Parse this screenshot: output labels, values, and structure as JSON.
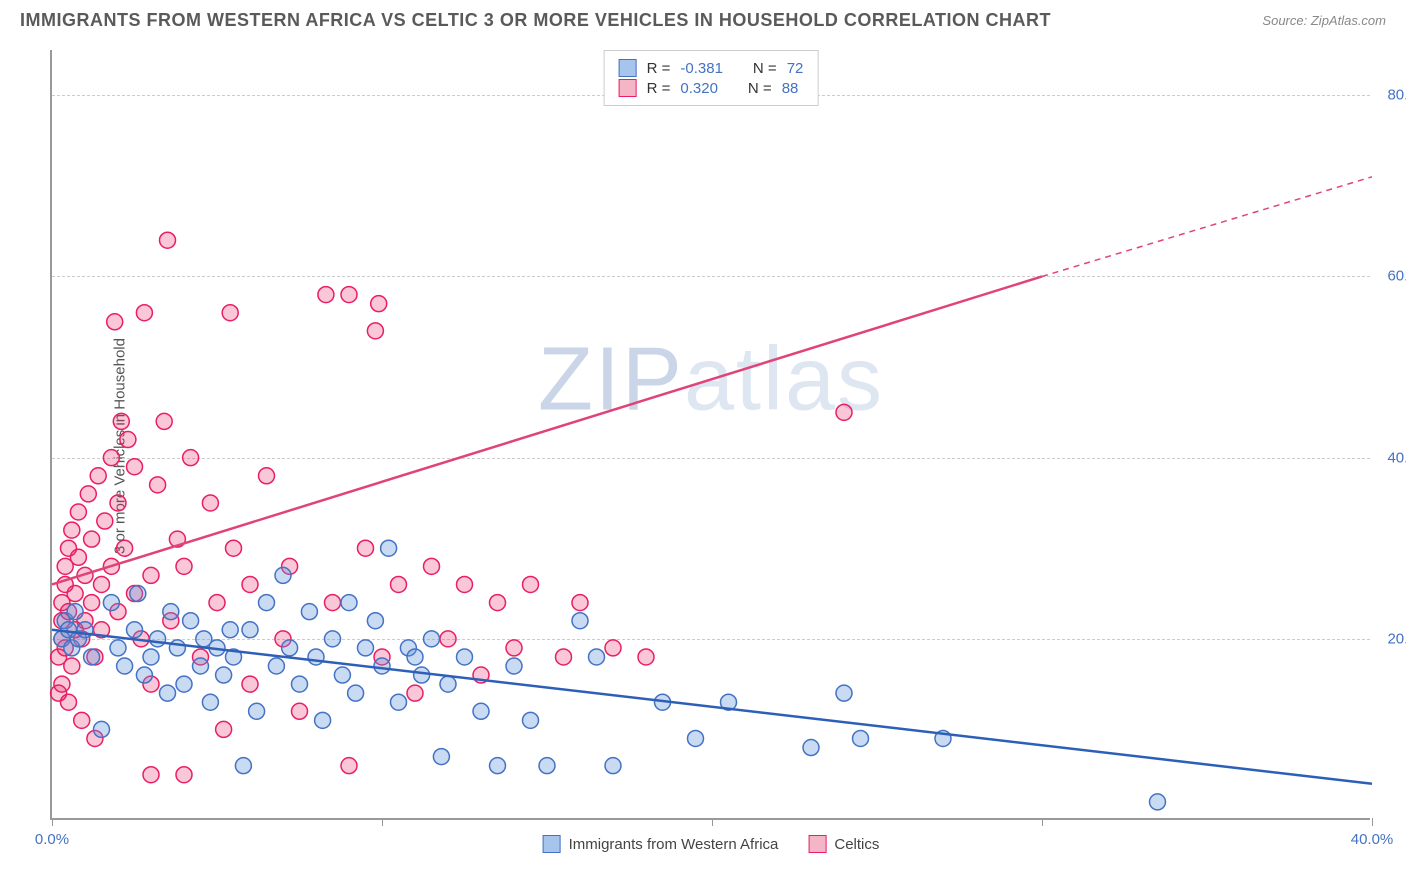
{
  "title": "IMMIGRANTS FROM WESTERN AFRICA VS CELTIC 3 OR MORE VEHICLES IN HOUSEHOLD CORRELATION CHART",
  "source_label": "Source:",
  "source_value": "ZipAtlas.com",
  "y_axis_label": "3 or more Vehicles in Household",
  "watermark_a": "ZIP",
  "watermark_b": "atlas",
  "chart": {
    "type": "scatter",
    "xlim": [
      0,
      40
    ],
    "ylim": [
      0,
      85
    ],
    "y_ticks": [
      20,
      40,
      60,
      80
    ],
    "y_tick_labels": [
      "20.0%",
      "40.0%",
      "60.0%",
      "80.0%"
    ],
    "x_ticks": [
      0,
      10,
      20,
      30,
      40
    ],
    "x_tick_labels": [
      "0.0%",
      "",
      "",
      "",
      "40.0%"
    ],
    "grid_color": "#cccccc",
    "background": "#ffffff"
  },
  "legend_top": [
    {
      "swatch_fill": "#a6c4ec",
      "swatch_border": "#4472c4",
      "r_label": "R =",
      "r_value": "-0.381",
      "n_label": "N =",
      "n_value": "72"
    },
    {
      "swatch_fill": "#f4b6c6",
      "swatch_border": "#e91e63",
      "r_label": "R =",
      "r_value": "0.320",
      "n_label": "N =",
      "n_value": "88"
    }
  ],
  "legend_bottom": [
    {
      "swatch_fill": "#a6c4ec",
      "swatch_border": "#4472c4",
      "label": "Immigrants from Western Africa"
    },
    {
      "swatch_fill": "#f4b6c6",
      "swatch_border": "#e91e63",
      "label": "Celtics"
    }
  ],
  "series_blue": {
    "color_fill": "rgba(100,150,220,0.35)",
    "color_stroke": "#4472c4",
    "marker_radius": 8,
    "trend": {
      "x1": 0,
      "y1": 21,
      "x2": 40,
      "y2": 4,
      "color": "#2d5fb8",
      "width": 2.5
    },
    "points": [
      [
        0.3,
        20
      ],
      [
        0.4,
        22
      ],
      [
        0.5,
        21
      ],
      [
        0.6,
        19
      ],
      [
        0.8,
        20
      ],
      [
        1.0,
        21
      ],
      [
        1.2,
        18
      ],
      [
        1.5,
        10
      ],
      [
        2.0,
        19
      ],
      [
        2.2,
        17
      ],
      [
        2.5,
        21
      ],
      [
        2.8,
        16
      ],
      [
        3.0,
        18
      ],
      [
        3.2,
        20
      ],
      [
        3.5,
        14
      ],
      [
        3.8,
        19
      ],
      [
        4.0,
        15
      ],
      [
        4.2,
        22
      ],
      [
        4.5,
        17
      ],
      [
        4.8,
        13
      ],
      [
        5.0,
        19
      ],
      [
        5.2,
        16
      ],
      [
        5.5,
        18
      ],
      [
        5.8,
        6
      ],
      [
        6.0,
        21
      ],
      [
        6.2,
        12
      ],
      [
        6.5,
        24
      ],
      [
        6.8,
        17
      ],
      [
        7.0,
        27
      ],
      [
        7.2,
        19
      ],
      [
        7.5,
        15
      ],
      [
        7.8,
        23
      ],
      [
        8.0,
        18
      ],
      [
        8.2,
        11
      ],
      [
        8.5,
        20
      ],
      [
        8.8,
        16
      ],
      [
        9.0,
        24
      ],
      [
        9.2,
        14
      ],
      [
        9.5,
        19
      ],
      [
        9.8,
        22
      ],
      [
        10.0,
        17
      ],
      [
        10.2,
        30
      ],
      [
        10.5,
        13
      ],
      [
        10.8,
        19
      ],
      [
        11.0,
        18
      ],
      [
        11.2,
        16
      ],
      [
        11.5,
        20
      ],
      [
        11.8,
        7
      ],
      [
        12.0,
        15
      ],
      [
        12.5,
        18
      ],
      [
        13.0,
        12
      ],
      [
        13.5,
        6
      ],
      [
        14.0,
        17
      ],
      [
        14.5,
        11
      ],
      [
        15.0,
        6
      ],
      [
        16.0,
        22
      ],
      [
        16.5,
        18
      ],
      [
        17.0,
        6
      ],
      [
        18.5,
        13
      ],
      [
        19.5,
        9
      ],
      [
        20.5,
        13
      ],
      [
        23.0,
        8
      ],
      [
        24.0,
        14
      ],
      [
        24.5,
        9
      ],
      [
        27.0,
        9
      ],
      [
        33.5,
        2
      ],
      [
        0.7,
        23
      ],
      [
        1.8,
        24
      ],
      [
        2.6,
        25
      ],
      [
        3.6,
        23
      ],
      [
        4.6,
        20
      ],
      [
        5.4,
        21
      ]
    ]
  },
  "series_pink": {
    "color_fill": "rgba(233,30,99,0.25)",
    "color_stroke": "#e91e63",
    "marker_radius": 8,
    "trend_solid": {
      "x1": 0,
      "y1": 26,
      "x2": 30,
      "y2": 60,
      "color": "#e04377",
      "width": 2.5
    },
    "trend_dash": {
      "x1": 30,
      "y1": 60,
      "x2": 40,
      "y2": 71,
      "color": "#e04377",
      "width": 1.5,
      "dash": "6,5"
    },
    "points": [
      [
        0.2,
        18
      ],
      [
        0.3,
        20
      ],
      [
        0.3,
        22
      ],
      [
        0.3,
        24
      ],
      [
        0.4,
        26
      ],
      [
        0.4,
        28
      ],
      [
        0.4,
        19
      ],
      [
        0.5,
        30
      ],
      [
        0.5,
        23
      ],
      [
        0.6,
        17
      ],
      [
        0.6,
        32
      ],
      [
        0.7,
        25
      ],
      [
        0.7,
        21
      ],
      [
        0.8,
        29
      ],
      [
        0.8,
        34
      ],
      [
        0.9,
        20
      ],
      [
        1.0,
        27
      ],
      [
        1.0,
        22
      ],
      [
        1.1,
        36
      ],
      [
        1.2,
        24
      ],
      [
        1.2,
        31
      ],
      [
        1.3,
        18
      ],
      [
        1.4,
        38
      ],
      [
        1.5,
        26
      ],
      [
        1.5,
        21
      ],
      [
        1.6,
        33
      ],
      [
        1.8,
        28
      ],
      [
        1.8,
        40
      ],
      [
        2.0,
        23
      ],
      [
        2.0,
        35
      ],
      [
        2.2,
        30
      ],
      [
        2.3,
        42
      ],
      [
        2.5,
        25
      ],
      [
        2.5,
        39
      ],
      [
        2.7,
        20
      ],
      [
        2.8,
        56
      ],
      [
        3.0,
        27
      ],
      [
        3.0,
        15
      ],
      [
        3.2,
        37
      ],
      [
        3.4,
        44
      ],
      [
        3.5,
        64
      ],
      [
        3.6,
        22
      ],
      [
        3.8,
        31
      ],
      [
        4.0,
        5
      ],
      [
        4.0,
        28
      ],
      [
        4.2,
        40
      ],
      [
        4.5,
        18
      ],
      [
        4.8,
        35
      ],
      [
        5.0,
        24
      ],
      [
        5.2,
        10
      ],
      [
        5.5,
        30
      ],
      [
        5.4,
        56
      ],
      [
        6.0,
        26
      ],
      [
        6.0,
        15
      ],
      [
        6.5,
        38
      ],
      [
        7.0,
        20
      ],
      [
        7.2,
        28
      ],
      [
        7.5,
        12
      ],
      [
        8.3,
        58
      ],
      [
        8.5,
        24
      ],
      [
        9.0,
        6
      ],
      [
        9.0,
        58
      ],
      [
        9.5,
        30
      ],
      [
        9.8,
        54
      ],
      [
        9.9,
        57
      ],
      [
        10.0,
        18
      ],
      [
        10.5,
        26
      ],
      [
        11.0,
        14
      ],
      [
        11.5,
        28
      ],
      [
        12.0,
        20
      ],
      [
        12.5,
        26
      ],
      [
        13.0,
        16
      ],
      [
        13.5,
        24
      ],
      [
        14.0,
        19
      ],
      [
        14.5,
        26
      ],
      [
        15.5,
        18
      ],
      [
        16.0,
        24
      ],
      [
        17.0,
        19
      ],
      [
        18.0,
        18
      ],
      [
        24.0,
        45
      ],
      [
        1.9,
        55
      ],
      [
        2.1,
        44
      ],
      [
        0.2,
        14
      ],
      [
        0.3,
        15
      ],
      [
        0.5,
        13
      ],
      [
        0.9,
        11
      ],
      [
        1.3,
        9
      ],
      [
        3.0,
        5
      ]
    ]
  }
}
